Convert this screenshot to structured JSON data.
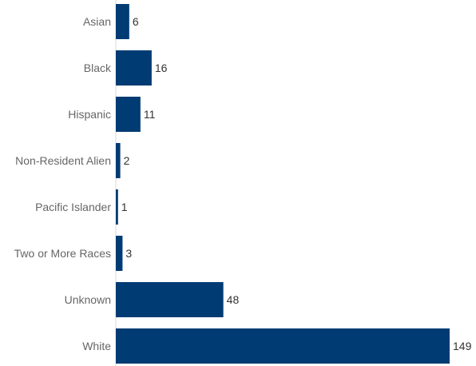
{
  "chart_data": {
    "type": "bar",
    "orientation": "horizontal",
    "categories": [
      "Asian",
      "Black",
      "Hispanic",
      "Non-Resident Alien",
      "Pacific Islander",
      "Two or More Races",
      "Unknown",
      "White"
    ],
    "values": [
      6,
      16,
      11,
      2,
      1,
      3,
      48,
      149
    ],
    "title": "",
    "xlabel": "",
    "ylabel": "",
    "xlim": [
      0,
      150
    ],
    "grid": false,
    "legend": "none",
    "bar_color": "#003b73",
    "data_labels": true
  }
}
